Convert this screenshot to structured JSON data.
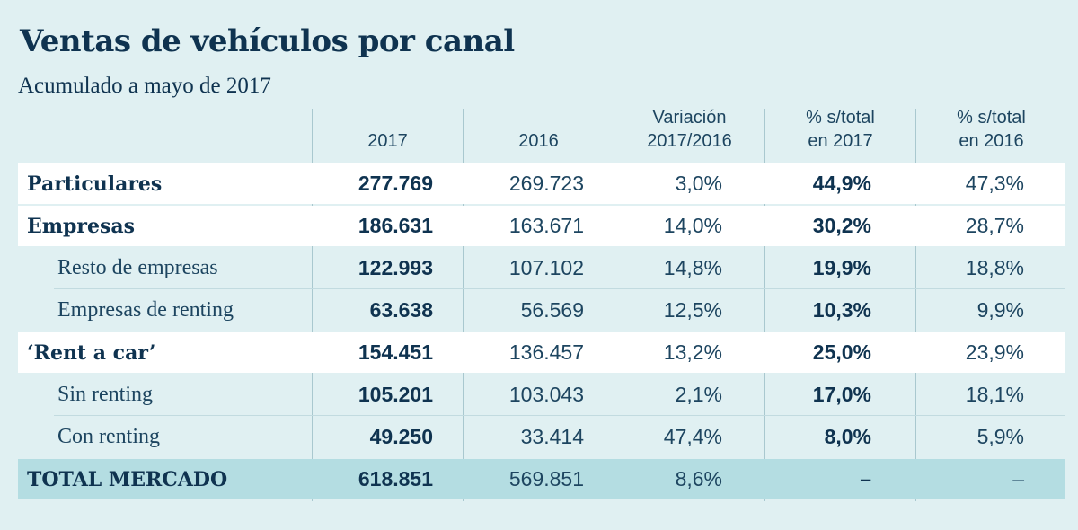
{
  "chart_data": {
    "type": "table",
    "title": "Ventas de vehículos por canal",
    "subtitle": "Acumulado a mayo de 2017",
    "headers": [
      "2017",
      "2016",
      "Variación 2017/2016",
      "% s/total en 2017",
      "% s/total en 2016"
    ],
    "header_lines": [
      [
        "2017"
      ],
      [
        "2016"
      ],
      [
        "Variación",
        "2017/2016"
      ],
      [
        "% s/total",
        "en 2017"
      ],
      [
        "% s/total",
        "en 2016"
      ]
    ],
    "rows": [
      {
        "label": "Particulares",
        "values": [
          "277.769",
          "269.723",
          "3,0%",
          "44,9%",
          "47,3%"
        ]
      },
      {
        "label": "Empresas",
        "values": [
          "186.631",
          "163.671",
          "14,0%",
          "30,2%",
          "28,7%"
        ]
      },
      {
        "label": "Resto de empresas",
        "values": [
          "122.993",
          "107.102",
          "14,8%",
          "19,9%",
          "18,8%"
        ]
      },
      {
        "label": "Empresas de renting",
        "values": [
          "63.638",
          "56.569",
          "12,5%",
          "10,3%",
          "9,9%"
        ]
      },
      {
        "label": "‘Rent a car’",
        "values": [
          "154.451",
          "136.457",
          "13,2%",
          "25,0%",
          "23,9%"
        ]
      },
      {
        "label": "Sin renting",
        "values": [
          "105.201",
          "103.043",
          "2,1%",
          "17,0%",
          "18,1%"
        ]
      },
      {
        "label": "Con renting",
        "values": [
          "49.250",
          "33.414",
          "47,4%",
          "8,0%",
          "5,9%"
        ]
      },
      {
        "label": "TOTAL MERCADO",
        "values": [
          "618.851",
          "569.851",
          "8,6%",
          "–",
          "–"
        ]
      }
    ]
  },
  "colors": {
    "background": "#e0f0f2",
    "highlight_row": "#ffffff",
    "total_row": "#b4dde2",
    "text": "#0f3350",
    "divider": "#a9c8cf"
  }
}
